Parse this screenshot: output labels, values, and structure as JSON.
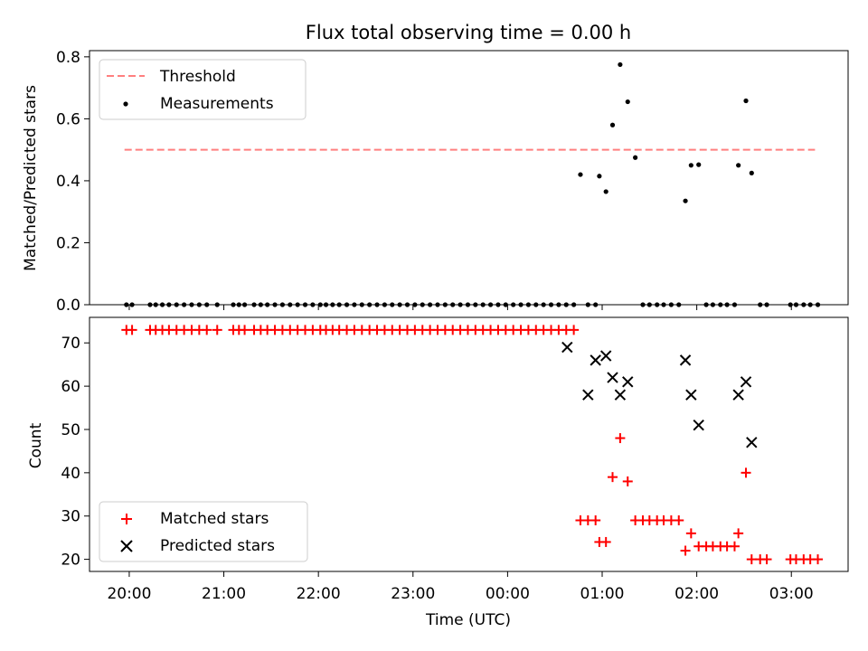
{
  "chart_data": [
    {
      "type": "line",
      "title": "Flux total observing time = 0.00 h",
      "ylabel": "Matched/Predicted stars",
      "ylim": [
        0,
        0.82
      ],
      "yticks": [
        "0.0",
        "0.2",
        "0.4",
        "0.6",
        "0.8"
      ],
      "grid": false,
      "legend_position": "upper left",
      "series": [
        {
          "name": "Threshold",
          "style": "dashed",
          "color": "#ff7f7f",
          "x": [
            -0.05,
            7.25
          ],
          "y": [
            0.5,
            0.5
          ]
        },
        {
          "name": "Measurements",
          "style": "scatter",
          "color": "#000000",
          "x": [
            -0.03,
            0.03,
            0.22,
            0.28,
            0.35,
            0.42,
            0.5,
            0.58,
            0.66,
            0.74,
            0.82,
            0.93,
            1.1,
            1.16,
            1.22,
            1.32,
            1.39,
            1.46,
            1.54,
            1.62,
            1.7,
            1.78,
            1.86,
            1.94,
            2.02,
            2.08,
            2.15,
            2.22,
            2.3,
            2.38,
            2.46,
            2.54,
            2.62,
            2.7,
            2.78,
            2.86,
            2.94,
            3.02,
            3.1,
            3.18,
            3.26,
            3.34,
            3.42,
            3.5,
            3.58,
            3.66,
            3.74,
            3.82,
            3.9,
            3.98,
            4.06,
            4.14,
            4.22,
            4.3,
            4.38,
            4.46,
            4.54,
            4.62,
            4.7,
            4.77,
            4.85,
            4.93,
            4.97,
            5.04,
            5.11,
            5.19,
            5.27,
            5.35,
            5.43,
            5.5,
            5.58,
            5.65,
            5.73,
            5.81,
            5.88,
            5.94,
            6.02,
            6.1,
            6.17,
            6.25,
            6.32,
            6.4,
            6.44,
            6.52,
            6.58,
            6.67,
            6.74,
            6.99,
            7.05,
            7.13,
            7.2,
            7.28
          ],
          "y": [
            0,
            0,
            0,
            0,
            0,
            0,
            0,
            0,
            0,
            0,
            0,
            0,
            0,
            0,
            0,
            0,
            0,
            0,
            0,
            0,
            0,
            0,
            0,
            0,
            0,
            0,
            0,
            0,
            0,
            0,
            0,
            0,
            0,
            0,
            0,
            0,
            0,
            0,
            0,
            0,
            0,
            0,
            0,
            0,
            0,
            0,
            0,
            0,
            0,
            0,
            0,
            0,
            0,
            0,
            0,
            0,
            0,
            0,
            0,
            0.42,
            0,
            0,
            0.415,
            0.365,
            0.58,
            0.775,
            0.655,
            0.475,
            0,
            0,
            0,
            0,
            0,
            0,
            0.335,
            0.45,
            0.452,
            0,
            0,
            0,
            0,
            0,
            0.45,
            0.658,
            0.425,
            0,
            0,
            0,
            0,
            0,
            0,
            0
          ]
        }
      ]
    },
    {
      "type": "scatter",
      "title": "",
      "xlabel": "Time (UTC)",
      "ylabel": "Count",
      "ylim": [
        17.2,
        75.9
      ],
      "yticks": [
        "20",
        "30",
        "40",
        "50",
        "60",
        "70"
      ],
      "xlim": [
        -0.42,
        7.6
      ],
      "xtick_labels": [
        "20:00",
        "21:00",
        "22:00",
        "23:00",
        "00:00",
        "01:00",
        "02:00",
        "03:00"
      ],
      "grid": false,
      "legend_position": "lower left",
      "series": [
        {
          "name": "Matched stars",
          "marker": "+",
          "color": "#ff0000",
          "x": [
            -0.03,
            0.03,
            0.22,
            0.28,
            0.35,
            0.42,
            0.5,
            0.58,
            0.66,
            0.74,
            0.82,
            0.93,
            1.1,
            1.16,
            1.22,
            1.32,
            1.39,
            1.46,
            1.54,
            1.62,
            1.7,
            1.78,
            1.86,
            1.94,
            2.02,
            2.08,
            2.15,
            2.22,
            2.3,
            2.38,
            2.46,
            2.54,
            2.62,
            2.7,
            2.78,
            2.86,
            2.94,
            3.02,
            3.1,
            3.18,
            3.26,
            3.34,
            3.42,
            3.5,
            3.58,
            3.66,
            3.74,
            3.82,
            3.9,
            3.98,
            4.06,
            4.14,
            4.22,
            4.3,
            4.38,
            4.46,
            4.54,
            4.62,
            4.7,
            4.77,
            4.85,
            4.93,
            4.97,
            5.04,
            5.11,
            5.19,
            5.27,
            5.35,
            5.43,
            5.5,
            5.58,
            5.65,
            5.73,
            5.81,
            5.88,
            5.94,
            6.02,
            6.1,
            6.17,
            6.25,
            6.32,
            6.4,
            6.44,
            6.52,
            6.58,
            6.67,
            6.74,
            6.99,
            7.05,
            7.13,
            7.2,
            7.28
          ],
          "y": [
            73,
            73,
            73,
            73,
            73,
            73,
            73,
            73,
            73,
            73,
            73,
            73,
            73,
            73,
            73,
            73,
            73,
            73,
            73,
            73,
            73,
            73,
            73,
            73,
            73,
            73,
            73,
            73,
            73,
            73,
            73,
            73,
            73,
            73,
            73,
            73,
            73,
            73,
            73,
            73,
            73,
            73,
            73,
            73,
            73,
            73,
            73,
            73,
            73,
            73,
            73,
            73,
            73,
            73,
            73,
            73,
            73,
            73,
            73,
            29,
            29,
            29,
            24,
            24,
            39,
            48,
            38,
            29,
            29,
            29,
            29,
            29,
            29,
            29,
            22,
            26,
            23,
            23,
            23,
            23,
            23,
            23,
            26,
            40,
            20,
            20,
            20,
            20,
            20,
            20,
            20,
            20
          ]
        },
        {
          "name": "Predicted stars",
          "marker": "x",
          "color": "#000000",
          "x": [
            4.63,
            4.85,
            4.93,
            5.04,
            5.11,
            5.19,
            5.27,
            5.88,
            5.94,
            6.02,
            6.44,
            6.52,
            6.58
          ],
          "y": [
            69,
            58,
            66,
            67,
            62,
            58,
            61,
            66,
            58,
            51,
            58,
            61,
            47
          ]
        }
      ]
    }
  ]
}
